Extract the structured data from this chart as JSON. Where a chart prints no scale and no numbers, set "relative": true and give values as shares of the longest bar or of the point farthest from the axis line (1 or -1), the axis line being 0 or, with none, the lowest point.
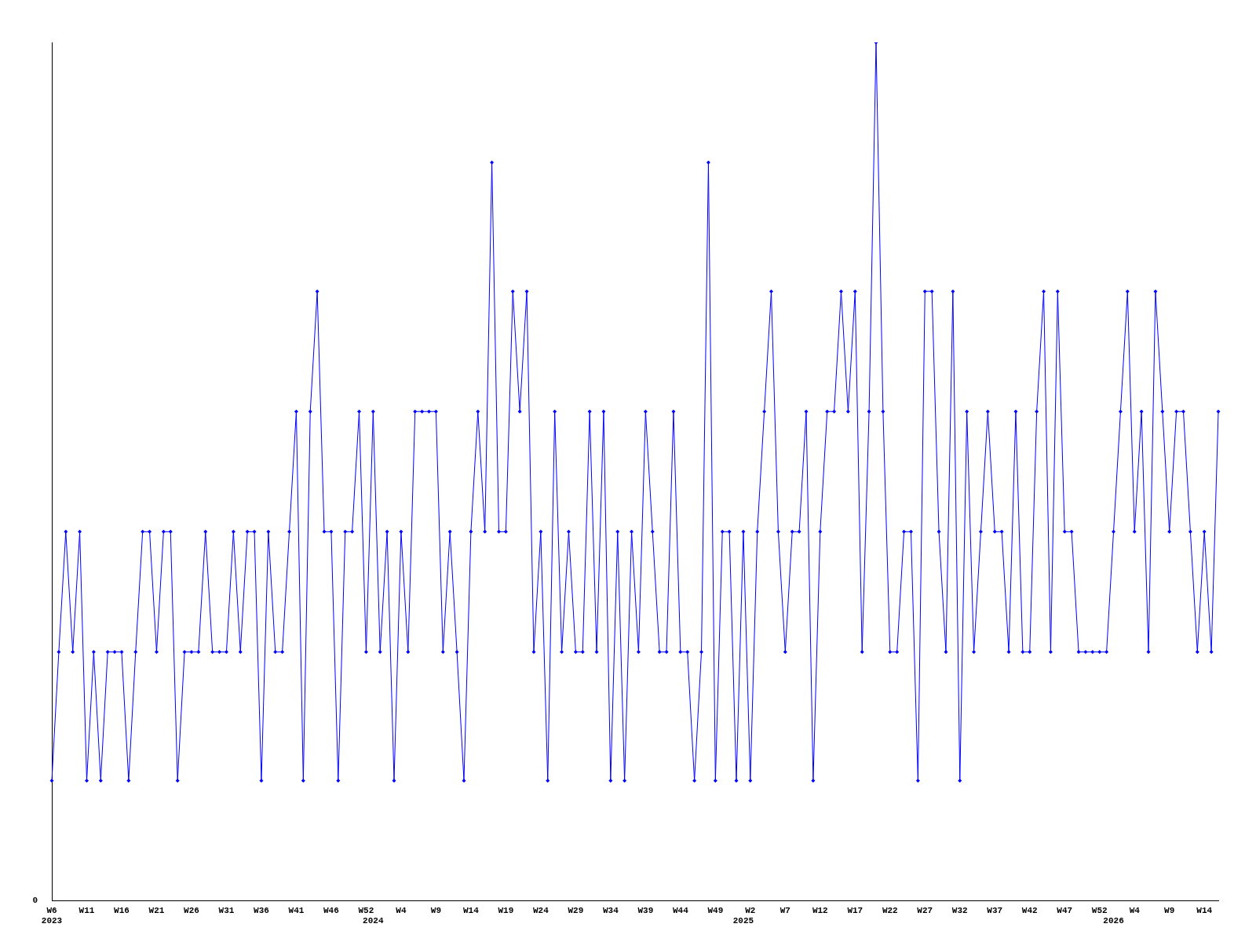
{
  "chart_data": {
    "type": "line",
    "relative": true,
    "legend": false,
    "grid": false,
    "marker": "diamond",
    "line_style": "solid",
    "annotations": [
      "0"
    ],
    "categories": [
      "W6\n2023",
      null,
      null,
      null,
      null,
      "W11",
      null,
      null,
      null,
      null,
      "W16",
      null,
      null,
      null,
      null,
      "W21",
      null,
      null,
      null,
      null,
      "W26",
      null,
      null,
      null,
      null,
      "W31",
      null,
      null,
      null,
      null,
      "W36",
      null,
      null,
      null,
      null,
      "W41",
      null,
      null,
      null,
      null,
      "W46",
      null,
      null,
      null,
      null,
      "W52",
      "\n2024",
      null,
      null,
      null,
      "W4",
      null,
      null,
      null,
      null,
      "W9",
      null,
      null,
      null,
      null,
      "W14",
      null,
      null,
      null,
      null,
      "W19",
      null,
      null,
      null,
      null,
      "W24",
      null,
      null,
      null,
      null,
      "W29",
      null,
      null,
      null,
      null,
      "W34",
      null,
      null,
      null,
      null,
      "W39",
      null,
      null,
      null,
      null,
      "W44",
      null,
      null,
      null,
      null,
      "W49",
      null,
      null,
      null,
      "\n2025",
      "W2",
      null,
      null,
      null,
      null,
      "W7",
      null,
      null,
      null,
      null,
      "W12",
      null,
      null,
      null,
      null,
      "W17",
      null,
      null,
      null,
      null,
      "W22",
      null,
      null,
      null,
      null,
      "W27",
      null,
      null,
      null,
      null,
      "W32",
      null,
      null,
      null,
      null,
      "W37",
      null,
      null,
      null,
      null,
      "W42",
      null,
      null,
      null,
      null,
      "W47",
      null,
      null,
      null,
      null,
      "W52",
      null,
      "\n2026",
      null,
      null,
      "W4",
      null,
      null,
      null,
      null,
      "W9",
      null,
      null,
      null,
      null,
      "W14",
      null,
      null
    ],
    "series": [
      {
        "color": "#0000ff",
        "values": [
          0.14,
          0.29,
          0.43,
          0.29,
          0.43,
          0.14,
          0.29,
          0.14,
          0.29,
          0.29,
          0.29,
          0.14,
          0.29,
          0.43,
          0.43,
          0.29,
          0.43,
          0.43,
          0.14,
          0.29,
          0.29,
          0.29,
          0.43,
          0.29,
          0.29,
          0.29,
          0.43,
          0.29,
          0.43,
          0.43,
          0.14,
          0.43,
          0.29,
          0.29,
          0.43,
          0.57,
          0.14,
          0.57,
          0.71,
          0.43,
          0.43,
          0.14,
          0.43,
          0.43,
          0.57,
          0.29,
          0.57,
          0.29,
          0.43,
          0.14,
          0.43,
          0.29,
          0.57,
          0.57,
          0.57,
          0.57,
          0.29,
          0.43,
          0.29,
          0.14,
          0.43,
          0.57,
          0.43,
          0.86,
          0.43,
          0.43,
          0.71,
          0.57,
          0.71,
          0.29,
          0.43,
          0.14,
          0.57,
          0.29,
          0.43,
          0.29,
          0.29,
          0.57,
          0.29,
          0.57,
          0.14,
          0.43,
          0.14,
          0.43,
          0.29,
          0.57,
          0.43,
          0.29,
          0.29,
          0.57,
          0.29,
          0.29,
          0.14,
          0.29,
          0.86,
          0.14,
          0.43,
          0.43,
          0.14,
          0.43,
          0.14,
          0.43,
          0.57,
          0.71,
          0.43,
          0.29,
          0.43,
          0.43,
          0.57,
          0.14,
          0.43,
          0.57,
          0.57,
          0.71,
          0.57,
          0.71,
          0.29,
          0.57,
          1,
          0.57,
          0.29,
          0.29,
          0.43,
          0.43,
          0.14,
          0.71,
          0.71,
          0.43,
          0.29,
          0.71,
          0.14,
          0.57,
          0.29,
          0.43,
          0.57,
          0.43,
          0.43,
          0.29,
          0.57,
          0.29,
          0.29,
          0.57,
          0.71,
          0.29,
          0.71,
          0.43,
          0.43,
          0.29,
          0.29,
          0.29,
          0.29,
          0.29,
          0.43,
          0.57,
          0.71,
          0.43,
          0.57,
          0.29,
          0.71,
          0.57,
          0.43,
          0.57,
          0.57,
          0.43,
          0.29,
          0.43,
          0.29,
          0.57
        ]
      }
    ]
  }
}
